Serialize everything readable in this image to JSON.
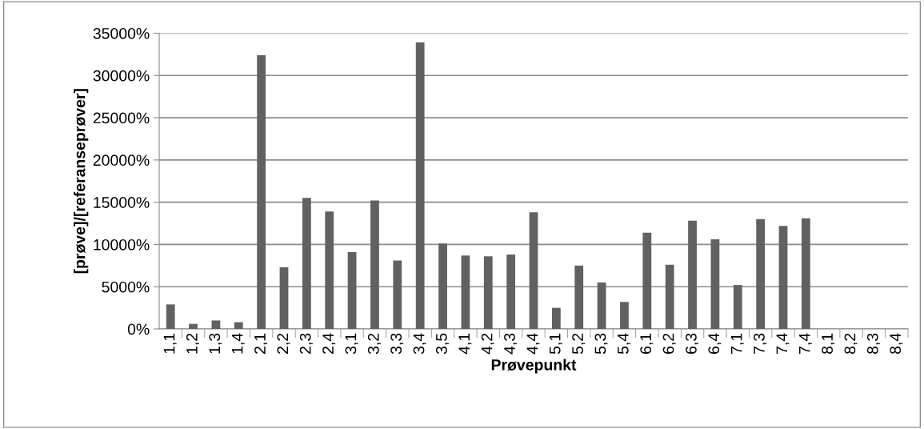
{
  "chart_data": {
    "type": "bar",
    "xlabel": "Prøvepunkt",
    "ylabel": "[prøve]/[referanseprøver]",
    "categories": [
      "1,1",
      "1,2",
      "1,3",
      "1,4",
      "2,1",
      "2,2",
      "2,3",
      "2,4",
      "3,1",
      "3,2",
      "3,3",
      "3,4",
      "3,5",
      "4,1",
      "4,2",
      "4,3",
      "4,4",
      "5,1",
      "5,2",
      "5,3",
      "5,4",
      "6,1",
      "6,2",
      "6,3",
      "6,4",
      "7,1",
      "7,3",
      "7,4",
      "7,4",
      "8,1",
      "8,2",
      "8,3",
      "8,4"
    ],
    "values": [
      2900,
      600,
      1000,
      800,
      32400,
      7300,
      15500,
      13900,
      9100,
      15200,
      8100,
      33900,
      10100,
      8700,
      8600,
      8800,
      13800,
      2500,
      7500,
      5500,
      3200,
      11400,
      7600,
      12800,
      10600,
      5200,
      13000,
      12200,
      13100,
      0,
      0,
      0,
      0
    ],
    "color": "#616161",
    "ylim": [
      0,
      35000
    ],
    "yticks": [
      {
        "value": 0,
        "label": "0%"
      },
      {
        "value": 5000,
        "label": "5000%"
      },
      {
        "value": 10000,
        "label": "10000%"
      },
      {
        "value": 15000,
        "label": "15000%"
      },
      {
        "value": 20000,
        "label": "20000%"
      },
      {
        "value": 25000,
        "label": "25000%"
      },
      {
        "value": 30000,
        "label": "30000%"
      },
      {
        "value": 35000,
        "label": "35000%"
      }
    ],
    "grid": "y",
    "legend": false
  }
}
